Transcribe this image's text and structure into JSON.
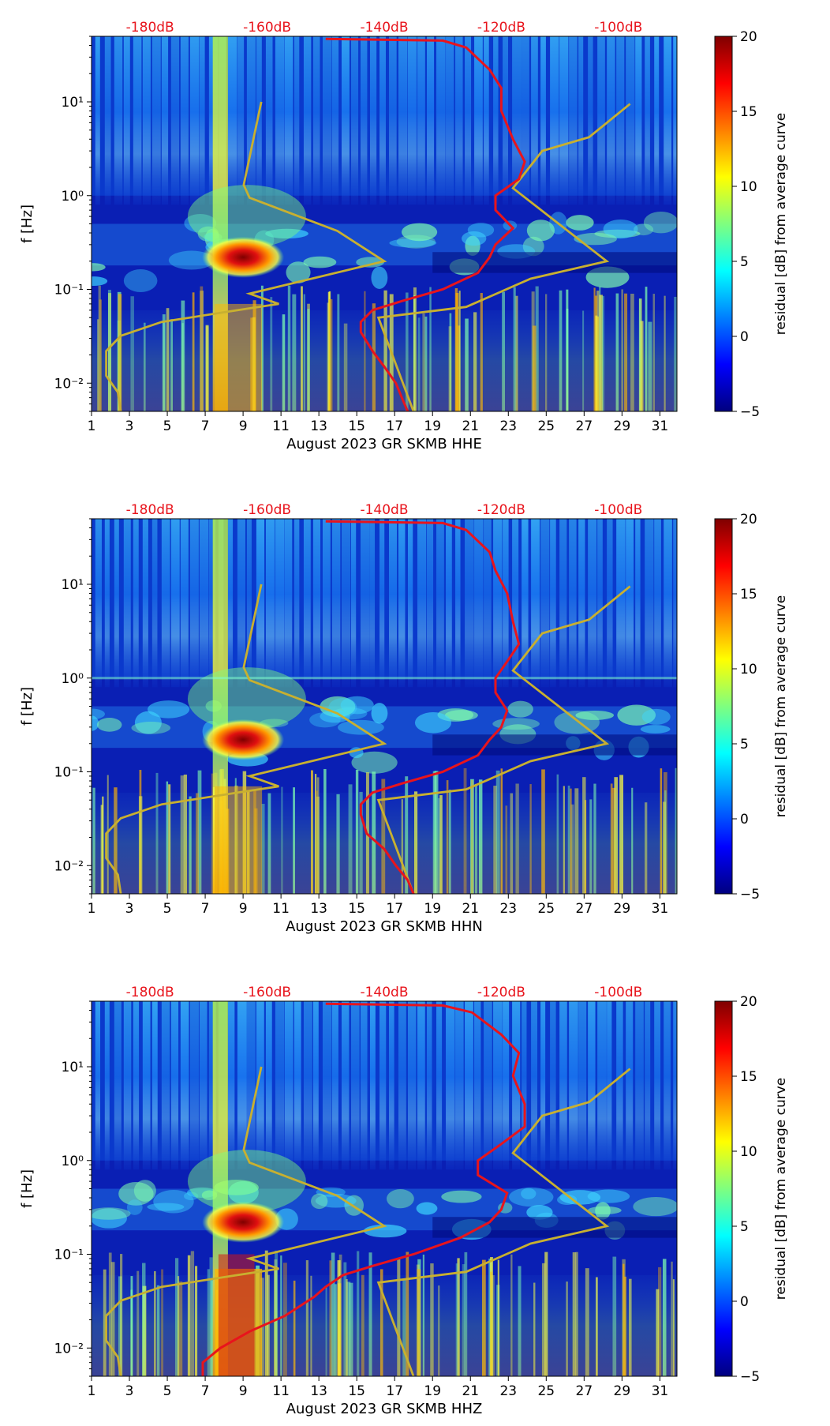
{
  "figure_title": "",
  "colors": {
    "noise_model": "#c8b030",
    "median_curve": "#e8141c",
    "db_labels": "#e8141c",
    "colormap": [
      "#00007f",
      "#0000ff",
      "#007fff",
      "#00ffff",
      "#7fff7f",
      "#ffff00",
      "#ff7f00",
      "#ff0000",
      "#7f0000"
    ]
  },
  "chart_data": [
    {
      "type": "heatmap",
      "component": "HHE",
      "xlabel": "August 2023 GR SKMB  HHE",
      "ylabel": "f [Hz]",
      "x_range": [
        1,
        31.9
      ],
      "x_ticks": [
        "1",
        "3",
        "5",
        "7",
        "9",
        "11",
        "13",
        "15",
        "17",
        "19",
        "21",
        "23",
        "25",
        "27",
        "29",
        "31"
      ],
      "y_range_hz": [
        0.005,
        50
      ],
      "y_ticks": [
        {
          "value": 0.01,
          "label": "10⁻²"
        },
        {
          "value": 0.1,
          "label": "10⁻¹"
        },
        {
          "value": 1,
          "label": "10⁰"
        },
        {
          "value": 10,
          "label": "10¹"
        }
      ],
      "top_axis_db": [
        "-180dB",
        "-160dB",
        "-140dB",
        "-120dB",
        "-100dB"
      ],
      "colorbar": {
        "label": "residual [dB] from average curve",
        "range": [
          -5,
          20
        ],
        "ticks": [
          "−5",
          "0",
          "5",
          "10",
          "15",
          "20"
        ]
      },
      "hot_spot": {
        "day": 9.0,
        "freq_hz": 0.22,
        "residual_db": 18
      },
      "median_curve_db": [
        {
          "db": -136,
          "f": 0.005
        },
        {
          "db": -137,
          "f": 0.007
        },
        {
          "db": -138,
          "f": 0.01
        },
        {
          "db": -140,
          "f": 0.015
        },
        {
          "db": -142,
          "f": 0.022
        },
        {
          "db": -144,
          "f": 0.035
        },
        {
          "db": -144,
          "f": 0.045
        },
        {
          "db": -142,
          "f": 0.06
        },
        {
          "db": -137,
          "f": 0.075
        },
        {
          "db": -130,
          "f": 0.1
        },
        {
          "db": -124,
          "f": 0.15
        },
        {
          "db": -122,
          "f": 0.22
        },
        {
          "db": -121,
          "f": 0.3
        },
        {
          "db": -118,
          "f": 0.45
        },
        {
          "db": -121,
          "f": 0.7
        },
        {
          "db": -121,
          "f": 1.0
        },
        {
          "db": -117,
          "f": 1.5
        },
        {
          "db": -116,
          "f": 2.3
        },
        {
          "db": -118,
          "f": 4
        },
        {
          "db": -120,
          "f": 8
        },
        {
          "db": -120,
          "f": 14
        },
        {
          "db": -122,
          "f": 22
        },
        {
          "db": -126,
          "f": 38
        },
        {
          "db": -130,
          "f": 45
        },
        {
          "db": -150,
          "f": 47
        }
      ],
      "noise_model_db": [
        {
          "db": -185,
          "f": 0.005
        },
        {
          "db": -185.5,
          "f": 0.008
        },
        {
          "db": -187.5,
          "f": 0.012
        },
        {
          "db": -187.5,
          "f": 0.022
        },
        {
          "db": -185,
          "f": 0.032
        },
        {
          "db": -178,
          "f": 0.045
        },
        {
          "db": -165,
          "f": 0.06
        },
        {
          "db": -158,
          "f": 0.07
        },
        {
          "db": -163,
          "f": 0.09
        },
        {
          "db": -140,
          "f": 0.2
        },
        {
          "db": -148,
          "f": 0.42
        },
        {
          "db": -163,
          "f": 0.95
        },
        {
          "db": -164,
          "f": 1.3
        },
        {
          "db": -161,
          "f": 10
        }
      ],
      "noise_model_high_db": [
        {
          "db": -135,
          "f": 0.005
        },
        {
          "db": -141,
          "f": 0.05
        },
        {
          "db": -126,
          "f": 0.065
        },
        {
          "db": -115,
          "f": 0.13
        },
        {
          "db": -102,
          "f": 0.2
        },
        {
          "db": -118,
          "f": 1.2
        },
        {
          "db": -113,
          "f": 3.0
        },
        {
          "db": -105,
          "f": 4.2
        },
        {
          "db": -98,
          "f": 9.5
        }
      ]
    },
    {
      "type": "heatmap",
      "component": "HHN",
      "xlabel": "August 2023 GR SKMB  HHN",
      "ylabel": "f [Hz]",
      "x_range": [
        1,
        31.9
      ],
      "x_ticks": [
        "1",
        "3",
        "5",
        "7",
        "9",
        "11",
        "13",
        "15",
        "17",
        "19",
        "21",
        "23",
        "25",
        "27",
        "29",
        "31"
      ],
      "y_range_hz": [
        0.005,
        50
      ],
      "y_ticks": [
        {
          "value": 0.01,
          "label": "10⁻²"
        },
        {
          "value": 0.1,
          "label": "10⁻¹"
        },
        {
          "value": 1,
          "label": "10⁰"
        },
        {
          "value": 10,
          "label": "10¹"
        }
      ],
      "top_axis_db": [
        "-180dB",
        "-160dB",
        "-140dB",
        "-120dB",
        "-100dB"
      ],
      "colorbar": {
        "label": "residual [dB] from average curve",
        "range": [
          -5,
          20
        ],
        "ticks": [
          "−5",
          "0",
          "5",
          "10",
          "15",
          "20"
        ]
      },
      "hot_spot": {
        "day": 9.0,
        "freq_hz": 0.22,
        "residual_db": 18
      },
      "median_curve_db": [
        {
          "db": -135,
          "f": 0.005
        },
        {
          "db": -136,
          "f": 0.007
        },
        {
          "db": -138,
          "f": 0.01
        },
        {
          "db": -140,
          "f": 0.015
        },
        {
          "db": -143,
          "f": 0.022
        },
        {
          "db": -144,
          "f": 0.035
        },
        {
          "db": -144,
          "f": 0.045
        },
        {
          "db": -142,
          "f": 0.06
        },
        {
          "db": -137,
          "f": 0.075
        },
        {
          "db": -130,
          "f": 0.1
        },
        {
          "db": -124,
          "f": 0.15
        },
        {
          "db": -122,
          "f": 0.22
        },
        {
          "db": -120,
          "f": 0.3
        },
        {
          "db": -119,
          "f": 0.45
        },
        {
          "db": -121,
          "f": 0.7
        },
        {
          "db": -121,
          "f": 1.0
        },
        {
          "db": -119,
          "f": 1.5
        },
        {
          "db": -117,
          "f": 2.3
        },
        {
          "db": -118,
          "f": 4
        },
        {
          "db": -119,
          "f": 8
        },
        {
          "db": -121,
          "f": 14
        },
        {
          "db": -122,
          "f": 22
        },
        {
          "db": -126,
          "f": 38
        },
        {
          "db": -130,
          "f": 45
        },
        {
          "db": -150,
          "f": 47
        }
      ],
      "noise_model_db": [
        {
          "db": -185,
          "f": 0.005
        },
        {
          "db": -185.5,
          "f": 0.008
        },
        {
          "db": -187.5,
          "f": 0.012
        },
        {
          "db": -187.5,
          "f": 0.022
        },
        {
          "db": -185,
          "f": 0.032
        },
        {
          "db": -178,
          "f": 0.045
        },
        {
          "db": -165,
          "f": 0.06
        },
        {
          "db": -158,
          "f": 0.07
        },
        {
          "db": -163,
          "f": 0.09
        },
        {
          "db": -140,
          "f": 0.2
        },
        {
          "db": -148,
          "f": 0.42
        },
        {
          "db": -163,
          "f": 0.95
        },
        {
          "db": -164,
          "f": 1.3
        },
        {
          "db": -161,
          "f": 10
        }
      ],
      "noise_model_high_db": [
        {
          "db": -135,
          "f": 0.005
        },
        {
          "db": -141,
          "f": 0.05
        },
        {
          "db": -126,
          "f": 0.065
        },
        {
          "db": -115,
          "f": 0.13
        },
        {
          "db": -102,
          "f": 0.2
        },
        {
          "db": -118,
          "f": 1.2
        },
        {
          "db": -113,
          "f": 3.0
        },
        {
          "db": -105,
          "f": 4.2
        },
        {
          "db": -98,
          "f": 9.5
        }
      ]
    },
    {
      "type": "heatmap",
      "component": "HHZ",
      "xlabel": "August 2023 GR SKMB  HHZ",
      "ylabel": "f [Hz]",
      "x_range": [
        1,
        31.9
      ],
      "x_ticks": [
        "1",
        "3",
        "5",
        "7",
        "9",
        "11",
        "13",
        "15",
        "17",
        "19",
        "21",
        "23",
        "25",
        "27",
        "29",
        "31"
      ],
      "y_range_hz": [
        0.005,
        50
      ],
      "y_ticks": [
        {
          "value": 0.01,
          "label": "10⁻²"
        },
        {
          "value": 0.1,
          "label": "10⁻¹"
        },
        {
          "value": 1,
          "label": "10⁰"
        },
        {
          "value": 10,
          "label": "10¹"
        }
      ],
      "top_axis_db": [
        "-180dB",
        "-160dB",
        "-140dB",
        "-120dB",
        "-100dB"
      ],
      "colorbar": {
        "label": "residual [dB] from average curve",
        "range": [
          -5,
          20
        ],
        "ticks": [
          "−5",
          "0",
          "5",
          "10",
          "15",
          "20"
        ]
      },
      "hot_spot": {
        "day": 9.0,
        "freq_hz": 0.22,
        "residual_db": 18
      },
      "median_curve_db": [
        {
          "db": -171,
          "f": 0.005
        },
        {
          "db": -171,
          "f": 0.007
        },
        {
          "db": -168,
          "f": 0.01
        },
        {
          "db": -163,
          "f": 0.015
        },
        {
          "db": -157,
          "f": 0.022
        },
        {
          "db": -152,
          "f": 0.035
        },
        {
          "db": -150,
          "f": 0.045
        },
        {
          "db": -147,
          "f": 0.06
        },
        {
          "db": -142,
          "f": 0.075
        },
        {
          "db": -135,
          "f": 0.1
        },
        {
          "db": -127,
          "f": 0.15
        },
        {
          "db": -122,
          "f": 0.22
        },
        {
          "db": -120,
          "f": 0.3
        },
        {
          "db": -119,
          "f": 0.45
        },
        {
          "db": -124,
          "f": 0.7
        },
        {
          "db": -124,
          "f": 1.0
        },
        {
          "db": -120,
          "f": 1.5
        },
        {
          "db": -116,
          "f": 2.3
        },
        {
          "db": -116,
          "f": 4
        },
        {
          "db": -118,
          "f": 8
        },
        {
          "db": -117,
          "f": 14
        },
        {
          "db": -120,
          "f": 22
        },
        {
          "db": -125,
          "f": 38
        },
        {
          "db": -130,
          "f": 45
        },
        {
          "db": -150,
          "f": 47
        }
      ],
      "noise_model_db": [
        {
          "db": -185,
          "f": 0.005
        },
        {
          "db": -185.5,
          "f": 0.008
        },
        {
          "db": -187.5,
          "f": 0.012
        },
        {
          "db": -187.5,
          "f": 0.022
        },
        {
          "db": -185,
          "f": 0.032
        },
        {
          "db": -178,
          "f": 0.045
        },
        {
          "db": -165,
          "f": 0.06
        },
        {
          "db": -158,
          "f": 0.07
        },
        {
          "db": -163,
          "f": 0.09
        },
        {
          "db": -140,
          "f": 0.2
        },
        {
          "db": -148,
          "f": 0.42
        },
        {
          "db": -163,
          "f": 0.95
        },
        {
          "db": -164,
          "f": 1.3
        },
        {
          "db": -161,
          "f": 10
        }
      ],
      "noise_model_high_db": [
        {
          "db": -135,
          "f": 0.005
        },
        {
          "db": -141,
          "f": 0.05
        },
        {
          "db": -126,
          "f": 0.065
        },
        {
          "db": -115,
          "f": 0.13
        },
        {
          "db": -102,
          "f": 0.2
        },
        {
          "db": -118,
          "f": 1.2
        },
        {
          "db": -113,
          "f": 3.0
        },
        {
          "db": -105,
          "f": 4.2
        },
        {
          "db": -98,
          "f": 9.5
        }
      ]
    }
  ]
}
